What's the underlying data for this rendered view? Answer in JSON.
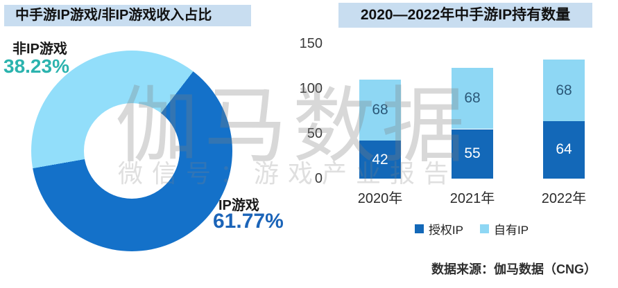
{
  "left_panel": {
    "title": "中手游IP游戏/非IP游戏收入占比"
  },
  "right_panel": {
    "title": "2020—2022年中手游IP持有数量",
    "source": "数据来源：伽马数据（CNG）"
  },
  "watermark": {
    "line1": "伽马数据",
    "line2": "微信号：游戏产业报告"
  },
  "colors": {
    "title_band_bg": "#c8ddf0",
    "donut_dark": "#1471c9",
    "donut_light": "#92defa",
    "bar_dark": "#1368b8",
    "bar_light": "#8ed7f4",
    "nonip_pct_text": "#2bb3ae",
    "ip_pct_text": "#1b64b8",
    "bar_label_on_light": "#2b5878",
    "bar_label_on_dark": "#ffffff"
  },
  "chart_data": [
    {
      "type": "pie",
      "donut": true,
      "title": "中手游IP游戏/非IP游戏收入占比",
      "start_angle_deg": 260,
      "slices": [
        {
          "label": "非IP游戏",
          "value": 38.23,
          "pct_label": "38.23%",
          "color": "#92defa"
        },
        {
          "label": "IP游戏",
          "value": 61.77,
          "pct_label": "61.77%",
          "color": "#1471c9"
        }
      ]
    },
    {
      "type": "bar",
      "stacked": true,
      "title": "2020—2022年中手游IP持有数量",
      "categories": [
        "2020年",
        "2021年",
        "2022年"
      ],
      "series": [
        {
          "name": "授权IP",
          "color": "#1368b8",
          "values": [
            42,
            55,
            64
          ]
        },
        {
          "name": "自有IP",
          "color": "#8ed7f4",
          "values": [
            68,
            68,
            68
          ]
        }
      ],
      "totals": [
        110,
        123,
        132
      ],
      "ylim": [
        0,
        150
      ],
      "yticks": [
        0,
        50,
        100,
        150
      ],
      "xlabel": "",
      "ylabel": "",
      "grid": false,
      "legend_position": "bottom"
    }
  ]
}
